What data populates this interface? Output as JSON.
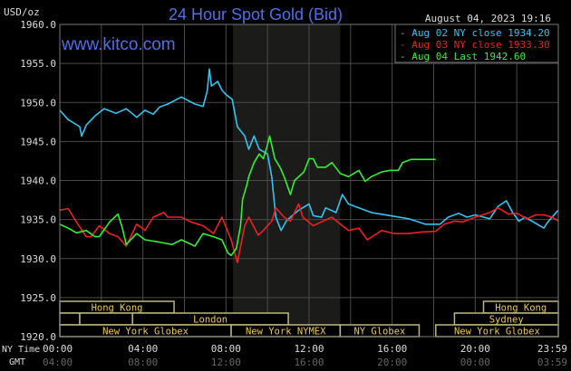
{
  "chart_data": {
    "type": "line",
    "title": "24 Hour Spot Gold (Bid)",
    "ylabel": "USD/oz",
    "website": "www.kitco.com",
    "timestamp": "August 04, 2023 19:16",
    "ylim": [
      1920,
      1960
    ],
    "xlim_hours": [
      0,
      24
    ],
    "y_ticks": [
      "1960.0",
      "1955.0",
      "1950.0",
      "1945.0",
      "1940.0",
      "1935.0",
      "1930.0",
      "1925.0",
      "1920.0"
    ],
    "y_tick_values": [
      1960,
      1955,
      1950,
      1945,
      1940,
      1935,
      1930,
      1925,
      1920
    ],
    "x_row_labels": {
      "ny": "NY Time",
      "gmt": "GMT"
    },
    "x_tick_hours": [
      0,
      4,
      8,
      12,
      16,
      20,
      24
    ],
    "x_ticks_ny": [
      "00:00",
      "04:00",
      "08:00",
      "12:00",
      "16:00",
      "20:00",
      "23:59"
    ],
    "x_ticks_gmt": [
      "04:00",
      "08:00",
      "12:00",
      "16:00",
      "20:00",
      "00:00",
      "03:59"
    ],
    "grid": true,
    "shaded_session_hours": [
      8.33,
      13.5
    ],
    "legend_position": "top-right",
    "series": [
      {
        "name": "Aug 02 NY close 1934.20",
        "color": "#33c3f0",
        "points": [
          [
            0,
            1949.0
          ],
          [
            0.4,
            1947.8
          ],
          [
            0.96,
            1946.9
          ],
          [
            1.05,
            1945.7
          ],
          [
            1.27,
            1947.1
          ],
          [
            1.7,
            1948.3
          ],
          [
            2.14,
            1949.2
          ],
          [
            2.7,
            1948.6
          ],
          [
            3.2,
            1949.2
          ],
          [
            3.7,
            1948.1
          ],
          [
            4.1,
            1949.0
          ],
          [
            4.5,
            1948.5
          ],
          [
            4.8,
            1949.4
          ],
          [
            5.2,
            1949.8
          ],
          [
            5.85,
            1950.7
          ],
          [
            6.5,
            1949.8
          ],
          [
            6.9,
            1949.5
          ],
          [
            7.1,
            1951.5
          ],
          [
            7.2,
            1954.3
          ],
          [
            7.3,
            1952.1
          ],
          [
            7.6,
            1952.7
          ],
          [
            7.8,
            1951.6
          ],
          [
            8.0,
            1951.0
          ],
          [
            8.3,
            1950.4
          ],
          [
            8.55,
            1946.9
          ],
          [
            8.9,
            1945.7
          ],
          [
            9.1,
            1944.0
          ],
          [
            9.35,
            1945.7
          ],
          [
            9.6,
            1944.0
          ],
          [
            10.0,
            1943.4
          ],
          [
            10.2,
            1940.5
          ],
          [
            10.4,
            1935.3
          ],
          [
            10.65,
            1933.6
          ],
          [
            10.9,
            1934.8
          ],
          [
            11.1,
            1935.3
          ],
          [
            11.5,
            1936.2
          ],
          [
            12.0,
            1937.0
          ],
          [
            12.2,
            1935.5
          ],
          [
            12.6,
            1935.3
          ],
          [
            12.8,
            1936.5
          ],
          [
            13.3,
            1935.9
          ],
          [
            13.6,
            1938.2
          ],
          [
            13.9,
            1937.0
          ],
          [
            14.4,
            1936.5
          ],
          [
            15.0,
            1935.9
          ],
          [
            15.9,
            1935.5
          ],
          [
            16.8,
            1935.1
          ],
          [
            17.6,
            1934.4
          ],
          [
            18.3,
            1934.4
          ],
          [
            18.7,
            1935.3
          ],
          [
            19.2,
            1935.8
          ],
          [
            19.6,
            1935.3
          ],
          [
            20.0,
            1935.6
          ],
          [
            20.7,
            1935.1
          ],
          [
            21.1,
            1936.7
          ],
          [
            21.5,
            1937.4
          ],
          [
            21.8,
            1935.9
          ],
          [
            22.1,
            1934.8
          ],
          [
            22.4,
            1935.3
          ],
          [
            23.3,
            1933.9
          ],
          [
            23.5,
            1934.7
          ],
          [
            24,
            1936.2
          ]
        ]
      },
      {
        "name": "Aug 03 NY close 1933.30",
        "color": "#ee2020",
        "points": [
          [
            0,
            1936.2
          ],
          [
            0.4,
            1936.4
          ],
          [
            0.8,
            1934.7
          ],
          [
            1.27,
            1932.8
          ],
          [
            1.5,
            1932.8
          ],
          [
            1.9,
            1934.2
          ],
          [
            2.4,
            1933.2
          ],
          [
            2.8,
            1932.8
          ],
          [
            3.2,
            1931.6
          ],
          [
            3.7,
            1934.4
          ],
          [
            4.1,
            1933.6
          ],
          [
            4.5,
            1935.3
          ],
          [
            5.0,
            1935.9
          ],
          [
            5.2,
            1935.3
          ],
          [
            5.85,
            1935.3
          ],
          [
            6.3,
            1934.7
          ],
          [
            6.9,
            1934.2
          ],
          [
            7.4,
            1933.2
          ],
          [
            7.8,
            1935.3
          ],
          [
            8.25,
            1932.4
          ],
          [
            8.55,
            1929.5
          ],
          [
            8.9,
            1934.2
          ],
          [
            9.1,
            1935.3
          ],
          [
            9.55,
            1933.0
          ],
          [
            9.8,
            1933.6
          ],
          [
            10.2,
            1934.8
          ],
          [
            10.4,
            1936.5
          ],
          [
            10.8,
            1935.3
          ],
          [
            11.1,
            1934.8
          ],
          [
            11.5,
            1937.0
          ],
          [
            11.7,
            1935.3
          ],
          [
            12.2,
            1934.2
          ],
          [
            12.6,
            1934.7
          ],
          [
            13.1,
            1935.3
          ],
          [
            13.6,
            1934.2
          ],
          [
            13.9,
            1933.6
          ],
          [
            14.4,
            1933.9
          ],
          [
            14.8,
            1932.4
          ],
          [
            15.5,
            1933.6
          ],
          [
            16.1,
            1933.2
          ],
          [
            16.8,
            1933.2
          ],
          [
            17.4,
            1933.4
          ],
          [
            18.1,
            1933.5
          ],
          [
            18.5,
            1934.4
          ],
          [
            19.0,
            1934.8
          ],
          [
            19.4,
            1934.7
          ],
          [
            20.0,
            1935.3
          ],
          [
            20.7,
            1935.9
          ],
          [
            21.1,
            1936.5
          ],
          [
            21.6,
            1935.7
          ],
          [
            22.0,
            1935.8
          ],
          [
            22.5,
            1935.1
          ],
          [
            22.9,
            1935.6
          ],
          [
            23.3,
            1935.6
          ],
          [
            23.7,
            1935.3
          ],
          [
            24,
            1934.8
          ]
        ]
      },
      {
        "name": "Aug 04 Last 1942.60",
        "color": "#33ee33",
        "points": [
          [
            0,
            1934.4
          ],
          [
            0.4,
            1933.9
          ],
          [
            0.8,
            1933.3
          ],
          [
            1.27,
            1933.6
          ],
          [
            1.7,
            1932.8
          ],
          [
            1.9,
            1932.8
          ],
          [
            2.4,
            1934.7
          ],
          [
            2.8,
            1935.7
          ],
          [
            3.0,
            1934.0
          ],
          [
            3.2,
            1931.8
          ],
          [
            3.7,
            1933.2
          ],
          [
            4.1,
            1932.4
          ],
          [
            4.8,
            1932.1
          ],
          [
            5.4,
            1931.8
          ],
          [
            5.85,
            1932.4
          ],
          [
            6.5,
            1931.6
          ],
          [
            6.9,
            1933.2
          ],
          [
            7.4,
            1932.8
          ],
          [
            7.8,
            1932.4
          ],
          [
            8.1,
            1930.7
          ],
          [
            8.25,
            1930.4
          ],
          [
            8.5,
            1931.3
          ],
          [
            8.7,
            1934.2
          ],
          [
            8.8,
            1937.6
          ],
          [
            9.0,
            1939.4
          ],
          [
            9.1,
            1940.5
          ],
          [
            9.35,
            1942.3
          ],
          [
            9.6,
            1943.4
          ],
          [
            9.8,
            1942.8
          ],
          [
            10.0,
            1944.6
          ],
          [
            10.1,
            1945.7
          ],
          [
            10.35,
            1942.8
          ],
          [
            10.6,
            1941.7
          ],
          [
            10.8,
            1940.5
          ],
          [
            11.1,
            1938.2
          ],
          [
            11.3,
            1940.0
          ],
          [
            11.75,
            1941.1
          ],
          [
            12.0,
            1942.8
          ],
          [
            12.2,
            1942.8
          ],
          [
            12.4,
            1941.7
          ],
          [
            12.8,
            1941.7
          ],
          [
            13.1,
            1942.3
          ],
          [
            13.5,
            1940.9
          ],
          [
            13.9,
            1940.5
          ],
          [
            14.4,
            1941.3
          ],
          [
            14.7,
            1939.9
          ],
          [
            15.0,
            1940.5
          ],
          [
            15.5,
            1941.1
          ],
          [
            15.9,
            1941.3
          ],
          [
            16.3,
            1941.3
          ],
          [
            16.5,
            1942.3
          ],
          [
            16.9,
            1942.7
          ],
          [
            18.1,
            1942.7
          ]
        ]
      }
    ],
    "sessions": [
      {
        "label": "Hong Kong",
        "row": 1,
        "start": 0,
        "end": 5.5,
        "show": true
      },
      {
        "label": "Hong Kong",
        "row": 1,
        "start": 20.4,
        "end": 24,
        "show": true
      },
      {
        "label": "",
        "row": 2,
        "start": 0,
        "end": 0.96,
        "show": false
      },
      {
        "label": "",
        "row": 2,
        "start": 0.96,
        "end": 3.5,
        "show": false
      },
      {
        "label": "London",
        "row": 2,
        "start": 3.5,
        "end": 11.0,
        "show": true
      },
      {
        "label": "Sydney",
        "row": 2,
        "start": 19.0,
        "end": 24,
        "show": true
      },
      {
        "label": "New York Globex",
        "row": 3,
        "start": 0,
        "end": 8.25,
        "show": true
      },
      {
        "label": "New York NYMEX",
        "row": 3,
        "start": 8.25,
        "end": 13.5,
        "show": true
      },
      {
        "label": "NY Globex",
        "row": 3,
        "start": 13.5,
        "end": 17.3,
        "show": true
      },
      {
        "label": "New York Globex",
        "row": 3,
        "start": 18.1,
        "end": 24,
        "show": true
      }
    ]
  }
}
